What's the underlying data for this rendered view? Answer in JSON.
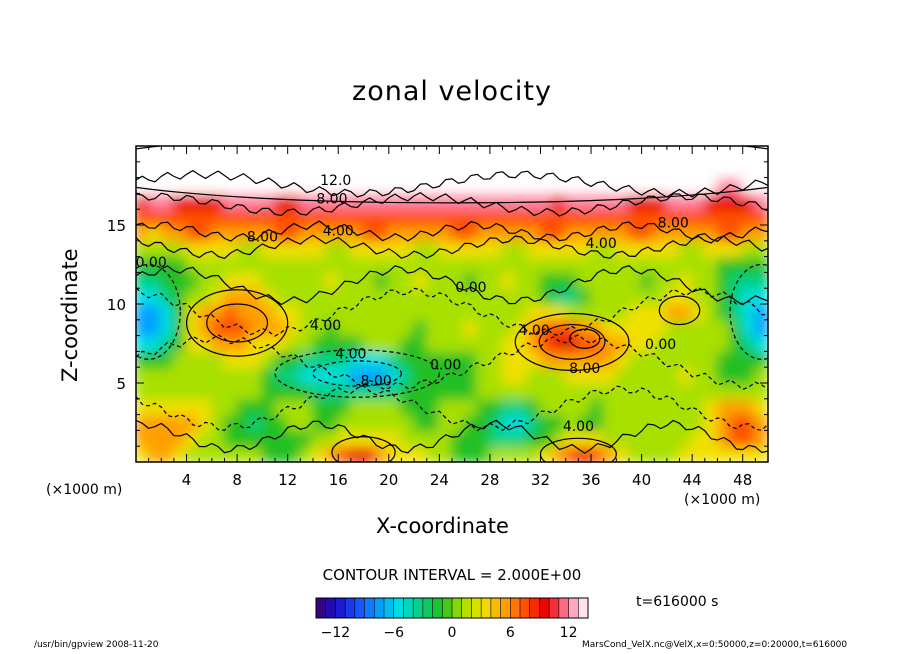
{
  "chart_data": {
    "type": "heatmap",
    "title": "zonal velocity",
    "xlabel": "X-coordinate",
    "ylabel": "Z-coordinate",
    "x_unit": "(×1000 m)",
    "z_unit": "(×1000 m)",
    "xlim": [
      0,
      50
    ],
    "ylim": [
      0,
      20
    ],
    "x_ticks": [
      4,
      8,
      12,
      16,
      20,
      24,
      28,
      32,
      36,
      40,
      44,
      48
    ],
    "y_ticks": [
      5,
      10,
      15
    ],
    "colorbar": {
      "min": -14,
      "max": 14,
      "ticks": [
        -12,
        -6,
        0,
        6,
        12
      ]
    },
    "contour_interval": "CONTOUR INTERVAL = 2.000E+00",
    "contour_labels": [
      {
        "text": "12.0",
        "x": 15.8,
        "y": 17.8
      },
      {
        "text": "8.00",
        "x": 15.5,
        "y": 16.6
      },
      {
        "text": "8.00",
        "x": 42.5,
        "y": 15.1
      },
      {
        "text": "4.00",
        "x": 16.0,
        "y": 14.6
      },
      {
        "text": "8.00",
        "x": 10.0,
        "y": 14.2
      },
      {
        "text": "4.00",
        "x": 36.8,
        "y": 13.8
      },
      {
        "text": "0.00",
        "x": 1.2,
        "y": 12.6
      },
      {
        "text": "0.00",
        "x": 26.5,
        "y": 11.0
      },
      {
        "text": "4.00",
        "x": 15.0,
        "y": 8.6
      },
      {
        "text": "4.00",
        "x": 31.5,
        "y": 8.3
      },
      {
        "text": "4.00",
        "x": 17.0,
        "y": 6.8
      },
      {
        "text": "0.00",
        "x": 41.5,
        "y": 7.4
      },
      {
        "text": "0.00",
        "x": 24.5,
        "y": 6.1
      },
      {
        "text": "8.00",
        "x": 19.0,
        "y": 5.1
      },
      {
        "text": "8.00",
        "x": 35.5,
        "y": 5.9
      },
      {
        "text": "4.00",
        "x": 35.0,
        "y": 2.2
      }
    ]
  },
  "time_label": "t=616000 s",
  "footer": {
    "left": "/usr/bin/gpview   2008-11-20",
    "right": "MarsCond_VelX.nc@VelX,x=0:50000,z=0:20000,t=616000"
  },
  "colors": {
    "scale": [
      "#3a006f",
      "#1a10c8",
      "#1850ff",
      "#00a0ff",
      "#00e0e0",
      "#00d080",
      "#20c020",
      "#a8e000",
      "#f0e000",
      "#ffa000",
      "#ff5000",
      "#e80000",
      "#ff80a0",
      "#ffffff"
    ]
  }
}
